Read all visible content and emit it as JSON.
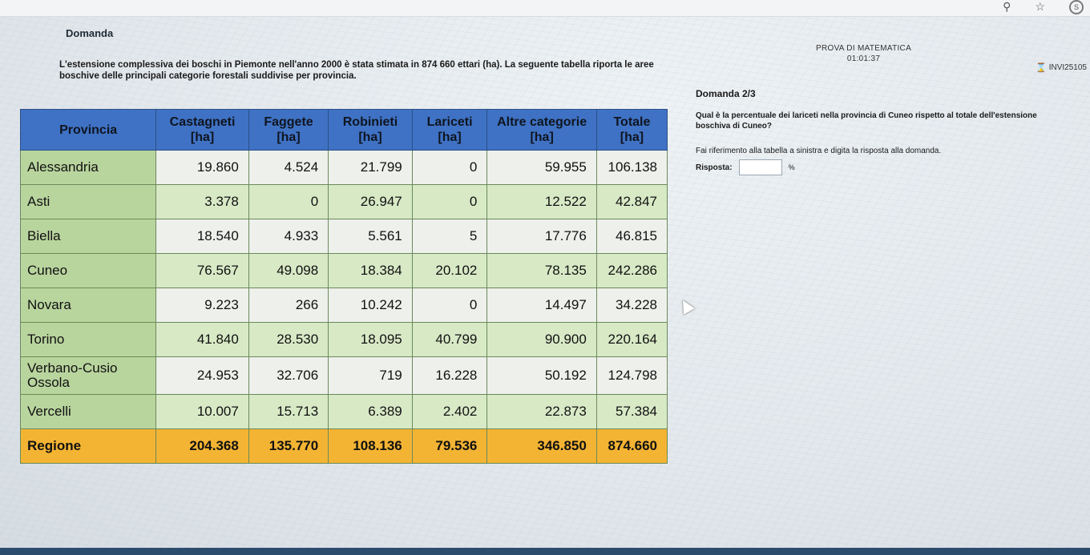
{
  "browser": {
    "icons": [
      "search-icon",
      "star-icon",
      "profile-icon"
    ],
    "profile_letter": "S"
  },
  "header": {
    "section_label": "Domanda",
    "exam_title": "PROVA DI MATEMATICA",
    "timer": "01:01:37",
    "student_code": "INVI25105"
  },
  "intro": {
    "text": "L'estensione complessiva dei boschi in Piemonte nell'anno 2000 è stata stimata in 874 660 ettari (ha). La seguente tabella riporta le aree boschive delle principali categorie forestali suddivise per provincia."
  },
  "table": {
    "columns": [
      "Provincia",
      "Castagneti [ha]",
      "Faggete [ha]",
      "Robinieti [ha]",
      "Lariceti [ha]",
      "Altre categorie [ha]",
      "Totale [ha]"
    ],
    "rows": [
      [
        "Alessandria",
        "19.860",
        "4.524",
        "21.799",
        "0",
        "59.955",
        "106.138"
      ],
      [
        "Asti",
        "3.378",
        "0",
        "26.947",
        "0",
        "12.522",
        "42.847"
      ],
      [
        "Biella",
        "18.540",
        "4.933",
        "5.561",
        "5",
        "17.776",
        "46.815"
      ],
      [
        "Cuneo",
        "76.567",
        "49.098",
        "18.384",
        "20.102",
        "78.135",
        "242.286"
      ],
      [
        "Novara",
        "9.223",
        "266",
        "10.242",
        "0",
        "14.497",
        "34.228"
      ],
      [
        "Torino",
        "41.840",
        "28.530",
        "18.095",
        "40.799",
        "90.900",
        "220.164"
      ],
      [
        "Verbano-Cusio Ossola",
        "24.953",
        "32.706",
        "719",
        "16.228",
        "50.192",
        "124.798"
      ],
      [
        "Vercelli",
        "10.007",
        "15.713",
        "6.389",
        "2.402",
        "22.873",
        "57.384"
      ]
    ],
    "total_row": [
      "Regione",
      "204.368",
      "135.770",
      "108.136",
      "79.536",
      "346.850",
      "874.660"
    ]
  },
  "question": {
    "number": "Domanda 2/3",
    "text": "Qual è la percentuale dei lariceti nella provincia di Cuneo rispetto al totale dell'estensione boschiva di Cuneo?",
    "hint": "Fai riferimento alla tabella a sinistra e digita la risposta alla domanda.",
    "answer_label": "Risposta:",
    "answer_value": "",
    "answer_unit": "%"
  }
}
